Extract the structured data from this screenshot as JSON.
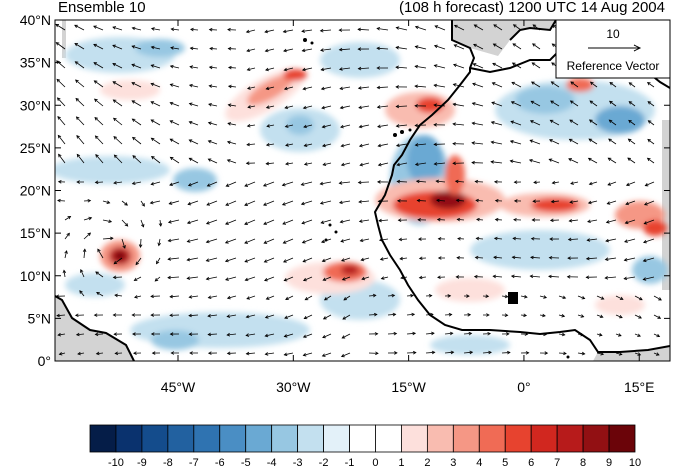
{
  "header": {
    "left_title": "Ensemble 10",
    "right_title": "(108 h forecast) 1200 UTC 14 Aug 2004"
  },
  "map": {
    "lat_range": [
      0,
      40
    ],
    "lon_range": [
      -61,
      19
    ],
    "lat_ticks": [
      {
        "value": 0,
        "label": "0°"
      },
      {
        "value": 5,
        "label": "5°N"
      },
      {
        "value": 10,
        "label": "10°N"
      },
      {
        "value": 15,
        "label": "15°N"
      },
      {
        "value": 20,
        "label": "20°N"
      },
      {
        "value": 25,
        "label": "25°N"
      },
      {
        "value": 30,
        "label": "30°N"
      },
      {
        "value": 35,
        "label": "35°N"
      },
      {
        "value": 40,
        "label": "40°N"
      }
    ],
    "lon_ticks": [
      {
        "value": -45,
        "label": "45°W"
      },
      {
        "value": -30,
        "label": "30°W"
      },
      {
        "value": -15,
        "label": "15°W"
      },
      {
        "value": 0,
        "label": "0°"
      },
      {
        "value": 15,
        "label": "15°E"
      }
    ],
    "reference_vector": {
      "magnitude": "10",
      "label": "Reference Vector"
    }
  },
  "colorbar": {
    "labels": [
      "-10",
      "-9",
      "-8",
      "-7",
      "-6",
      "-5",
      "-4",
      "-3",
      "-2",
      "-1",
      "0",
      "1",
      "2",
      "3",
      "4",
      "5",
      "6",
      "7",
      "8",
      "9",
      "10"
    ],
    "colors": [
      "#051d48",
      "#0a326e",
      "#144c8c",
      "#2261a0",
      "#2f73b1",
      "#4a8ec4",
      "#6aa9d3",
      "#97c7e2",
      "#c3e0ef",
      "#e3f1f9",
      "#ffffff",
      "#ffffff",
      "#fde0dc",
      "#f9bcb0",
      "#f59785",
      "#f06b55",
      "#e7432f",
      "#d1271f",
      "#b71b1b",
      "#921013",
      "#6b0409"
    ]
  },
  "colors": {
    "land_mask": "#d3d3d3",
    "coastline": "#000000",
    "arrows": "#000000"
  }
}
